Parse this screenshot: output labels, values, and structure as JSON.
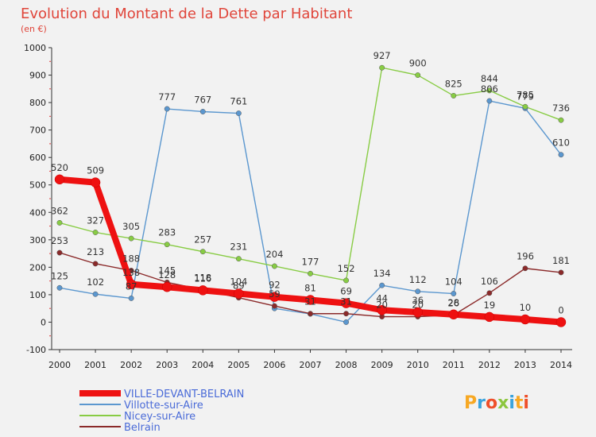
{
  "chart_data": {
    "type": "line",
    "title": "Evolution du Montant de la Dette par Habitant",
    "subtitle": "(en €)",
    "x": [
      "2000",
      "2001",
      "2002",
      "2003",
      "2004",
      "2005",
      "2006",
      "2007",
      "2008",
      "2009",
      "2010",
      "2011",
      "2012",
      "2013",
      "2014"
    ],
    "ylim": [
      -100,
      1000
    ],
    "yticks": [
      -100,
      0,
      100,
      200,
      300,
      400,
      500,
      600,
      700,
      800,
      900,
      1000
    ],
    "grid": false,
    "legend_position": "bottom-left",
    "series": [
      {
        "name": "VILLE-DEVANT-BELRAIN",
        "color": "#ee1111",
        "values": [
          520,
          509,
          138,
          128,
          116,
          104,
          92,
          81,
          69,
          44,
          36,
          28,
          19,
          10,
          0
        ],
        "labels": [
          "520",
          "509",
          "138",
          "128",
          "116",
          "104",
          "92",
          "81",
          "69",
          "44",
          "36",
          "28",
          "19",
          "10",
          "0"
        ]
      },
      {
        "name": "Villotte-sur-Aire",
        "color": "#5b97cf",
        "values": [
          125,
          102,
          87,
          777,
          767,
          761,
          50,
          30,
          0,
          134,
          112,
          104,
          806,
          779,
          610
        ],
        "labels": [
          "125",
          "102",
          "87",
          "777",
          "767",
          "761",
          "",
          "",
          "",
          "134",
          "112",
          "104",
          "806",
          "779",
          "610"
        ]
      },
      {
        "name": "Nicey-sur-Aire",
        "color": "#88cc44",
        "values": [
          362,
          327,
          305,
          283,
          257,
          231,
          204,
          177,
          152,
          927,
          900,
          825,
          844,
          785,
          736
        ],
        "labels": [
          "362",
          "327",
          "305",
          "283",
          "257",
          "231",
          "204",
          "177",
          "152",
          "927",
          "900",
          "825",
          "844",
          "785",
          "736"
        ]
      },
      {
        "name": "Belrain",
        "color": "#8b2a2a",
        "values": [
          253,
          213,
          188,
          145,
          118,
          89,
          59,
          31,
          31,
          20,
          20,
          26,
          106,
          196,
          181
        ],
        "labels": [
          "253",
          "213",
          "188",
          "145",
          "118",
          "89",
          "59",
          "31",
          "31",
          "20",
          "20",
          "26",
          "106",
          "196",
          "181"
        ]
      }
    ]
  },
  "logo": {
    "text": "Proxiti"
  }
}
